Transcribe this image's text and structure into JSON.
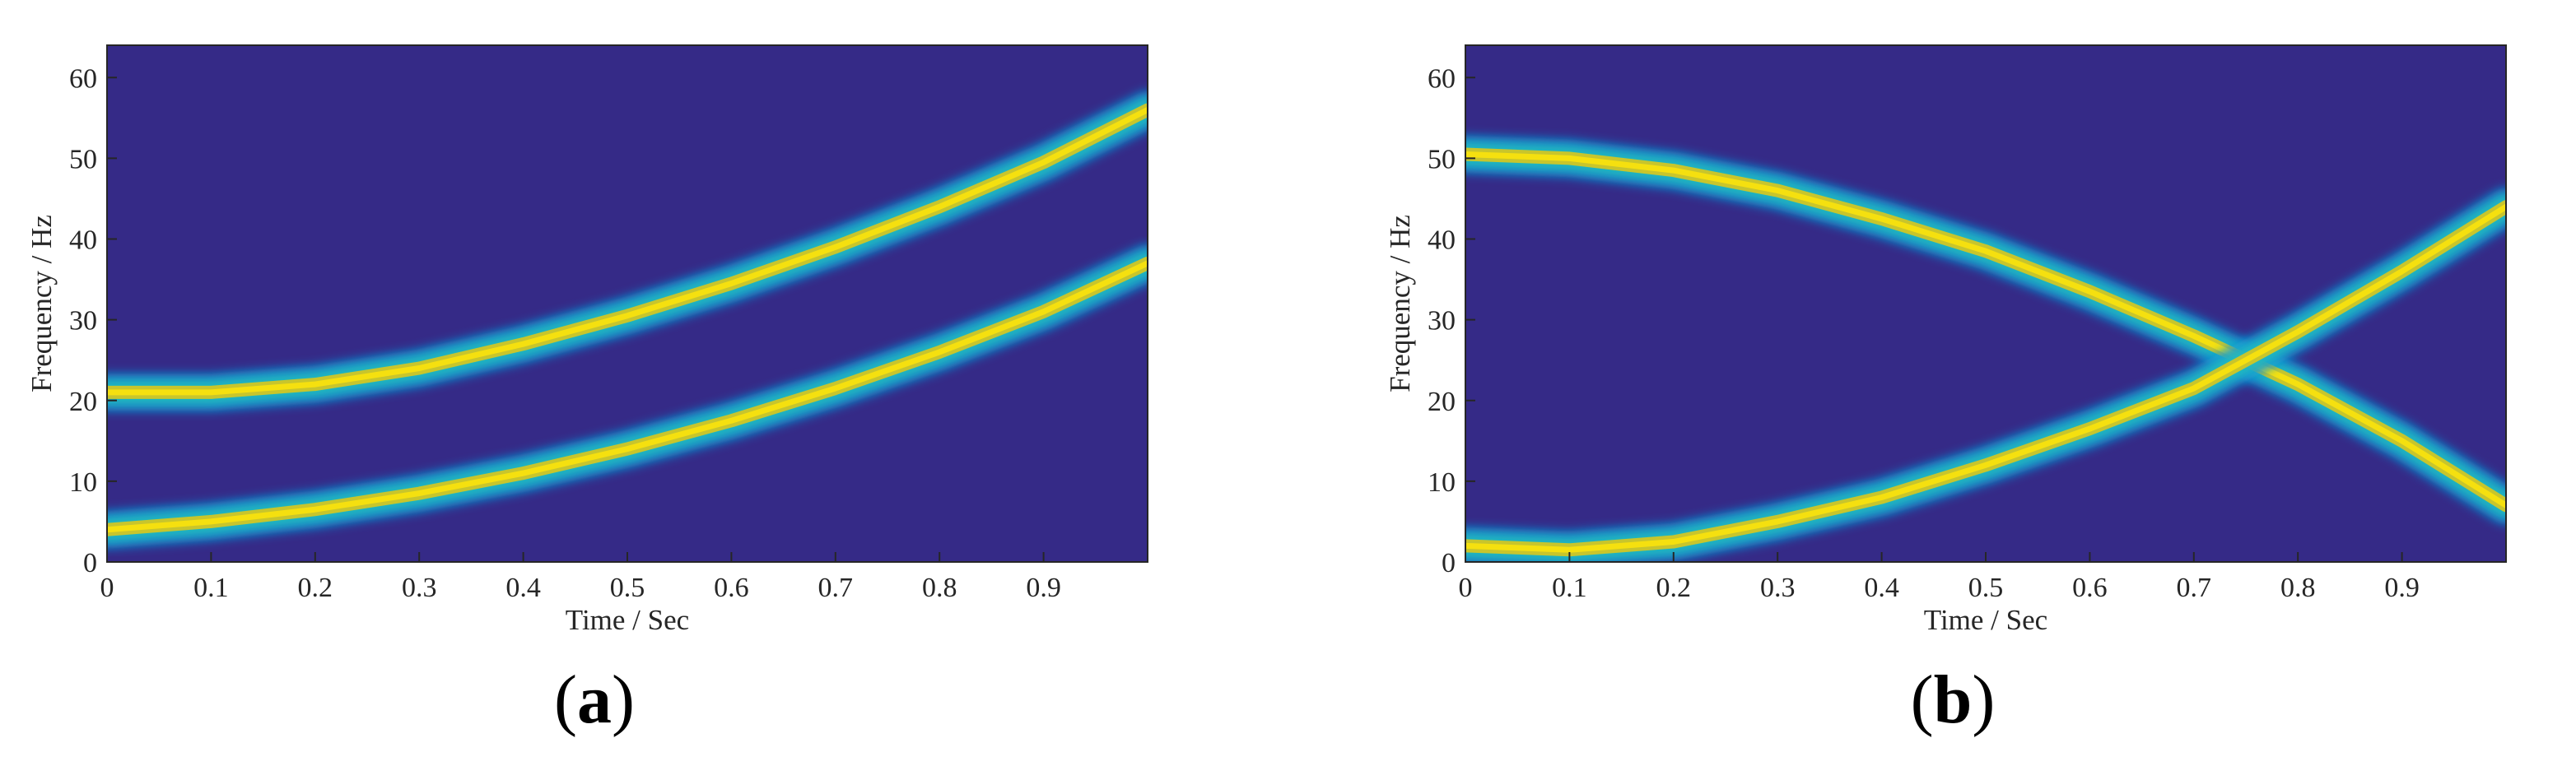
{
  "colors": {
    "background": "#352a87",
    "ridge_edge": "#0f8fd8",
    "ridge_mid": "#21bdbe",
    "ridge_core": "#c8c52c",
    "ridge_peak": "#f5e00f",
    "axis": "#262626"
  },
  "chart_data": [
    {
      "panel_label": "(a)",
      "panel_letter": "a",
      "type": "heatmap",
      "xlabel": "Time / Sec",
      "ylabel": "Frequency / Hz",
      "xlim": [
        0,
        1
      ],
      "ylim": [
        0,
        64
      ],
      "x_ticks": [
        "0",
        "0.1",
        "0.2",
        "0.3",
        "0.4",
        "0.5",
        "0.6",
        "0.7",
        "0.8",
        "0.9"
      ],
      "y_ticks": [
        "0",
        "10",
        "20",
        "30",
        "40",
        "50",
        "60"
      ],
      "grid": false,
      "series": [
        {
          "x": [
            0.0,
            0.1,
            0.2,
            0.3,
            0.4,
            0.5,
            0.6,
            0.7,
            0.8,
            0.9,
            1.0
          ],
          "y": [
            21,
            21,
            22,
            24,
            27,
            30.5,
            34.5,
            39,
            44,
            49.5,
            56
          ]
        },
        {
          "x": [
            0.0,
            0.1,
            0.2,
            0.3,
            0.4,
            0.5,
            0.6,
            0.7,
            0.8,
            0.9,
            1.0
          ],
          "y": [
            4,
            5,
            6.5,
            8.5,
            11,
            14,
            17.5,
            21.5,
            26,
            31,
            37
          ]
        }
      ]
    },
    {
      "panel_label": "(b)",
      "panel_letter": "b",
      "type": "heatmap",
      "xlabel": "Time / Sec",
      "ylabel": "Frequency / Hz",
      "xlim": [
        0,
        1
      ],
      "ylim": [
        0,
        64
      ],
      "x_ticks": [
        "0",
        "0.1",
        "0.2",
        "0.3",
        "0.4",
        "0.5",
        "0.6",
        "0.7",
        "0.8",
        "0.9"
      ],
      "y_ticks": [
        "0",
        "10",
        "20",
        "30",
        "40",
        "50",
        "60"
      ],
      "grid": false,
      "series": [
        {
          "x": [
            0.0,
            0.1,
            0.2,
            0.3,
            0.4,
            0.5,
            0.6,
            0.7,
            0.75,
            0.8,
            0.9,
            1.0
          ],
          "y": [
            50.5,
            50,
            48.5,
            46,
            42.5,
            38.5,
            33.5,
            28,
            25,
            22,
            15,
            7
          ]
        },
        {
          "x": [
            0.0,
            0.1,
            0.2,
            0.3,
            0.4,
            0.5,
            0.6,
            0.7,
            0.75,
            0.8,
            0.9,
            1.0
          ],
          "y": [
            2,
            1.5,
            2.5,
            5,
            8,
            12,
            16.5,
            21.5,
            25,
            28.5,
            36,
            44
          ]
        }
      ]
    }
  ]
}
